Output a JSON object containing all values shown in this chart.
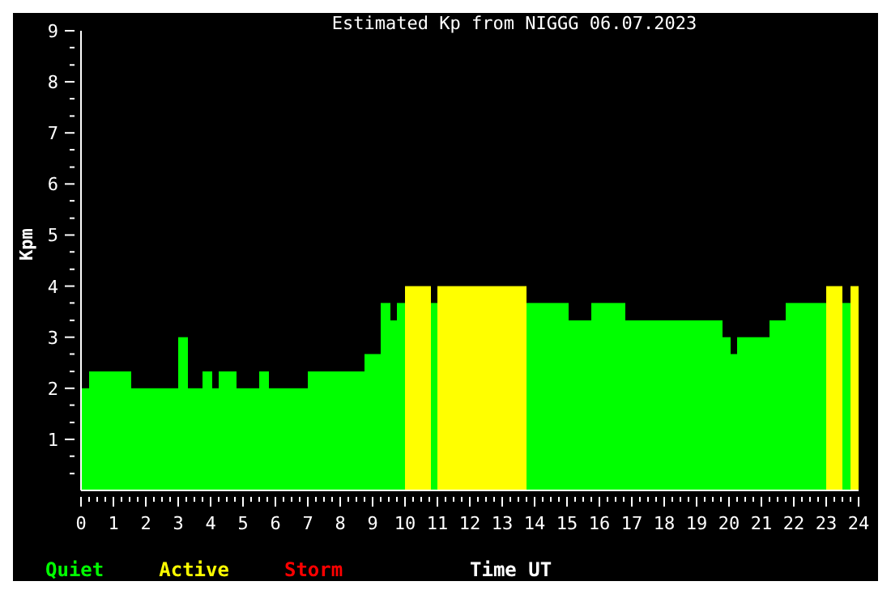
{
  "chart_data": {
    "type": "histogram",
    "title": "Estimated Kp from NIGGG 06.07.2023",
    "xlabel": "Time UT",
    "ylabel": "Kpm",
    "bins": [
      0,
      0.25,
      1.55,
      3.0,
      3.3,
      3.75,
      4.05,
      4.25,
      4.8,
      5.5,
      5.8,
      7.0,
      8.75,
      9.25,
      9.55,
      9.75,
      10.0,
      10.8,
      11.0,
      13.75,
      15.05,
      15.75,
      16.8,
      19.8,
      20.05,
      20.25,
      21.25,
      21.75,
      23.0,
      23.5,
      23.75,
      24
    ],
    "series": [
      {
        "name": "Quiet",
        "color": "#00ff00",
        "values": [
          2,
          2.33,
          2,
          3,
          2,
          2.33,
          2,
          2.33,
          2,
          2.33,
          2,
          2.33,
          2.67,
          3.67,
          3.33,
          3.67,
          null,
          3.67,
          null,
          3.67,
          3.33,
          3.67,
          3.33,
          3,
          2.67,
          3,
          3.33,
          3.67,
          null,
          3.67,
          null
        ]
      },
      {
        "name": "Active",
        "color": "#ffff00",
        "values": [
          null,
          null,
          null,
          null,
          null,
          null,
          null,
          null,
          null,
          null,
          null,
          null,
          null,
          null,
          null,
          null,
          4,
          null,
          4,
          null,
          null,
          null,
          null,
          null,
          null,
          null,
          null,
          null,
          4,
          null,
          4
        ]
      }
    ],
    "annotations": [
      "Storm"
    ],
    "xlim": [
      0,
      24
    ],
    "xticks": [
      0,
      {
        "value": 0.25,
        "label": null
      },
      {
        "value": 0.5,
        "label": null
      },
      {
        "value": 0.75,
        "label": null
      },
      1,
      {
        "value": 1.25,
        "label": null
      },
      {
        "value": 1.5,
        "label": null
      },
      {
        "value": 1.75,
        "label": null
      },
      2,
      {
        "value": 2.25,
        "label": null
      },
      {
        "value": 2.5,
        "label": null
      },
      {
        "value": 2.75,
        "label": null
      },
      3,
      {
        "value": 3.25,
        "label": null
      },
      {
        "value": 3.5,
        "label": null
      },
      {
        "value": 3.75,
        "label": null
      },
      4,
      {
        "value": 4.25,
        "label": null
      },
      {
        "value": 4.5,
        "label": null
      },
      {
        "value": 4.75,
        "label": null
      },
      5,
      {
        "value": 5.25,
        "label": null
      },
      {
        "value": 5.5,
        "label": null
      },
      {
        "value": 5.75,
        "label": null
      },
      6,
      {
        "value": 6.25,
        "label": null
      },
      {
        "value": 6.5,
        "label": null
      },
      {
        "value": 6.75,
        "label": null
      },
      7,
      {
        "value": 7.25,
        "label": null
      },
      {
        "value": 7.5,
        "label": null
      },
      {
        "value": 7.75,
        "label": null
      },
      8,
      {
        "value": 8.25,
        "label": null
      },
      {
        "value": 8.5,
        "label": null
      },
      {
        "value": 8.75,
        "label": null
      },
      9,
      {
        "value": 9.25,
        "label": null
      },
      {
        "value": 9.5,
        "label": null
      },
      {
        "value": 9.75,
        "label": null
      },
      10,
      {
        "value": 10.25,
        "label": null
      },
      {
        "value": 10.5,
        "label": null
      },
      {
        "value": 10.75,
        "label": null
      },
      11,
      {
        "value": 11.25,
        "label": null
      },
      {
        "value": 11.5,
        "label": null
      },
      {
        "value": 11.75,
        "label": null
      },
      12,
      {
        "value": 12.25,
        "label": null
      },
      {
        "value": 12.5,
        "label": null
      },
      {
        "value": 12.75,
        "label": null
      },
      13,
      {
        "value": 13.25,
        "label": null
      },
      {
        "value": 13.5,
        "label": null
      },
      {
        "value": 13.75,
        "label": null
      },
      14,
      {
        "value": 14.25,
        "label": null
      },
      {
        "value": 14.5,
        "label": null
      },
      {
        "value": 14.75,
        "label": null
      },
      15,
      {
        "value": 15.25,
        "label": null
      },
      {
        "value": 15.5,
        "label": null
      },
      {
        "value": 15.75,
        "label": null
      },
      16,
      {
        "value": 16.25,
        "label": null
      },
      {
        "value": 16.5,
        "label": null
      },
      {
        "value": 16.75,
        "label": null
      },
      17,
      {
        "value": 17.25,
        "label": null
      },
      {
        "value": 17.5,
        "label": null
      },
      {
        "value": 17.75,
        "label": null
      },
      18,
      {
        "value": 18.25,
        "label": null
      },
      {
        "value": 18.5,
        "label": null
      },
      {
        "value": 18.75,
        "label": null
      },
      19,
      {
        "value": 19.25,
        "label": null
      },
      {
        "value": 19.5,
        "label": null
      },
      {
        "value": 19.75,
        "label": null
      },
      20,
      {
        "value": 20.25,
        "label": null
      },
      {
        "value": 20.5,
        "label": null
      },
      {
        "value": 20.75,
        "label": null
      },
      21,
      {
        "value": 21.25,
        "label": null
      },
      {
        "value": 21.5,
        "label": null
      },
      {
        "value": 21.75,
        "label": null
      },
      22,
      {
        "value": 22.25,
        "label": null
      },
      {
        "value": 22.5,
        "label": null
      },
      {
        "value": 22.75,
        "label": null
      },
      23,
      {
        "value": 23.25,
        "label": null
      },
      {
        "value": 23.5,
        "label": null
      },
      {
        "value": 23.75,
        "label": null
      },
      24
    ],
    "ylim": [
      0,
      9
    ],
    "yticks": [
      {
        "value": 0.33,
        "label": null
      },
      {
        "value": 0.67,
        "label": null
      },
      1,
      {
        "value": 1.33,
        "label": null
      },
      {
        "value": 1.67,
        "label": null
      },
      2,
      {
        "value": 2.33,
        "label": null
      },
      {
        "value": 2.67,
        "label": null
      },
      3,
      {
        "value": 3.33,
        "label": null
      },
      {
        "value": 3.67,
        "label": null
      },
      4,
      {
        "value": 4.33,
        "label": null
      },
      {
        "value": 4.67,
        "label": null
      },
      5,
      {
        "value": 5.33,
        "label": null
      },
      {
        "value": 5.67,
        "label": null
      },
      6,
      {
        "value": 6.33,
        "label": null
      },
      {
        "value": 6.67,
        "label": null
      },
      7,
      {
        "value": 7.33,
        "label": null
      },
      {
        "value": 7.67,
        "label": null
      },
      8,
      {
        "value": 8.33,
        "label": null
      },
      {
        "value": 8.67,
        "label": null
      },
      9
    ],
    "grid": false,
    "legend": "bottom left"
  }
}
